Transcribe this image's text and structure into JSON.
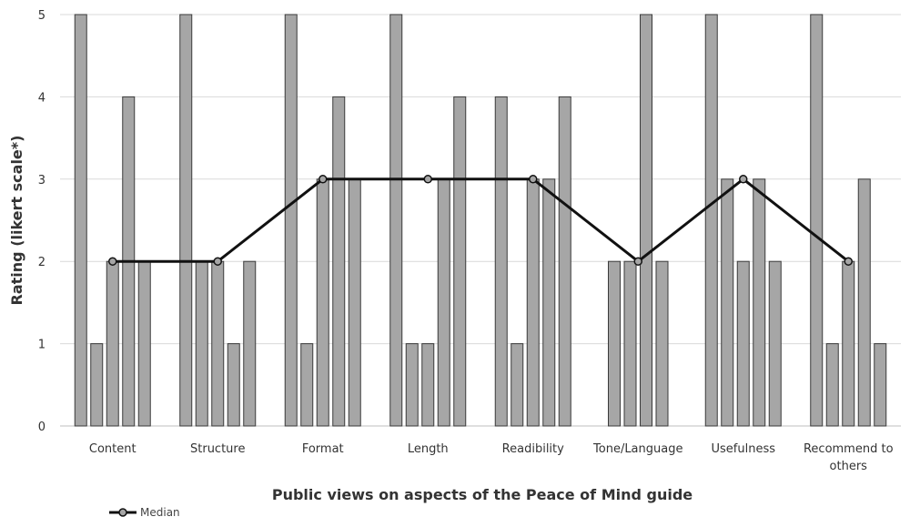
{
  "chart_data": {
    "type": "bar",
    "xlabel": "Public views on aspects of the Peace of Mind guide",
    "ylabel": "Rating (likert scale*)",
    "ylim": [
      0,
      5
    ],
    "yticks": [
      "0",
      "1",
      "2",
      "3",
      "4",
      "5"
    ],
    "grid": true,
    "categories": [
      [
        "Content"
      ],
      [
        "Structure"
      ],
      [
        "Format"
      ],
      [
        "Length"
      ],
      [
        "Readibility"
      ],
      [
        "Tone/Language"
      ],
      [
        "Usefulness"
      ],
      [
        "Recommend to",
        "others"
      ]
    ],
    "bar_values": [
      [
        5,
        1,
        2,
        4,
        2
      ],
      [
        5,
        2,
        2,
        1,
        2
      ],
      [
        5,
        1,
        3,
        4,
        3
      ],
      [
        5,
        1,
        1,
        3,
        4
      ],
      [
        4,
        1,
        3,
        3,
        4
      ],
      [
        2,
        2,
        5,
        2
      ],
      [
        5,
        3,
        2,
        3,
        2
      ],
      [
        5,
        1,
        2,
        3,
        1
      ]
    ],
    "bar_color": "#a6a6a6",
    "median": {
      "name": "Median",
      "values": [
        2,
        2,
        3,
        3,
        3,
        2,
        3,
        2
      ],
      "line_color": "#111111",
      "marker_color": "#a6a6a6"
    },
    "legend_position": "bottom-left"
  }
}
